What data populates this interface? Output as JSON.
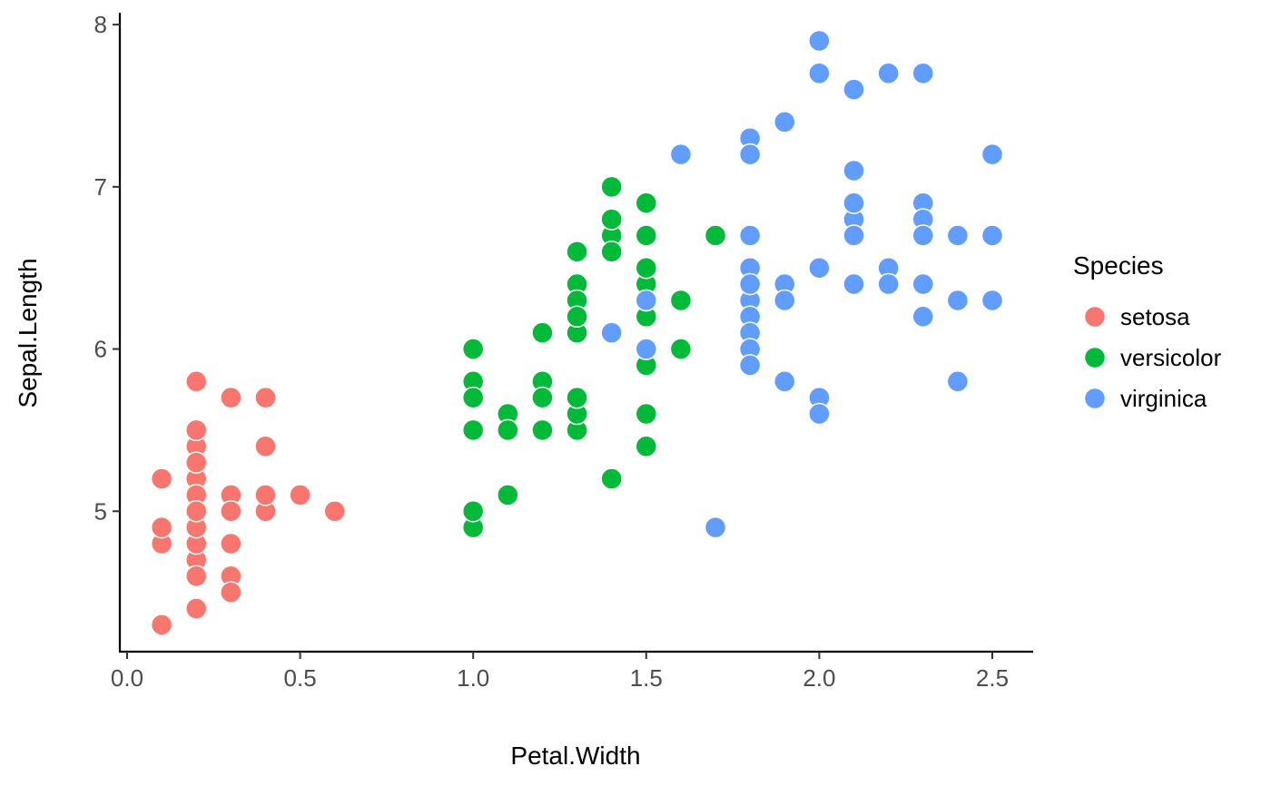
{
  "chart_data": {
    "type": "scatter",
    "xlabel": "Petal.Width",
    "ylabel": "Sepal.Length",
    "xlim": [
      0,
      2.5
    ],
    "ylim": [
      4.3,
      7.9
    ],
    "xticks": [
      "0.0",
      "0.5",
      "1.0",
      "1.5",
      "2.0",
      "2.5"
    ],
    "yticks": [
      "5",
      "6",
      "7",
      "8"
    ],
    "grid": false,
    "legend": {
      "title": "Species",
      "position": "right"
    },
    "series": [
      {
        "name": "setosa",
        "color": "#F8766D",
        "points": [
          [
            0.2,
            5.1
          ],
          [
            0.2,
            4.9
          ],
          [
            0.2,
            4.7
          ],
          [
            0.2,
            4.6
          ],
          [
            0.2,
            5.0
          ],
          [
            0.4,
            5.4
          ],
          [
            0.3,
            4.6
          ],
          [
            0.2,
            5.0
          ],
          [
            0.2,
            4.4
          ],
          [
            0.1,
            4.9
          ],
          [
            0.2,
            5.4
          ],
          [
            0.2,
            4.8
          ],
          [
            0.1,
            4.8
          ],
          [
            0.1,
            4.3
          ],
          [
            0.2,
            5.8
          ],
          [
            0.4,
            5.7
          ],
          [
            0.4,
            5.4
          ],
          [
            0.3,
            5.1
          ],
          [
            0.3,
            5.7
          ],
          [
            0.3,
            5.1
          ],
          [
            0.2,
            5.4
          ],
          [
            0.4,
            5.1
          ],
          [
            0.2,
            4.6
          ],
          [
            0.5,
            5.1
          ],
          [
            0.2,
            4.8
          ],
          [
            0.2,
            5.0
          ],
          [
            0.4,
            5.0
          ],
          [
            0.2,
            5.2
          ],
          [
            0.2,
            5.2
          ],
          [
            0.2,
            4.7
          ],
          [
            0.2,
            4.8
          ],
          [
            0.4,
            5.4
          ],
          [
            0.1,
            5.2
          ],
          [
            0.2,
            5.5
          ],
          [
            0.2,
            4.9
          ],
          [
            0.2,
            5.0
          ],
          [
            0.2,
            5.5
          ],
          [
            0.1,
            4.9
          ],
          [
            0.2,
            4.4
          ],
          [
            0.2,
            5.1
          ],
          [
            0.3,
            5.0
          ],
          [
            0.3,
            4.5
          ],
          [
            0.2,
            4.4
          ],
          [
            0.6,
            5.0
          ],
          [
            0.4,
            5.1
          ],
          [
            0.3,
            4.8
          ],
          [
            0.2,
            5.1
          ],
          [
            0.2,
            4.6
          ],
          [
            0.2,
            5.3
          ],
          [
            0.2,
            5.0
          ]
        ]
      },
      {
        "name": "versicolor",
        "color": "#00BA38",
        "points": [
          [
            1.4,
            7.0
          ],
          [
            1.5,
            6.4
          ],
          [
            1.5,
            6.9
          ],
          [
            1.3,
            5.5
          ],
          [
            1.5,
            6.5
          ],
          [
            1.3,
            5.7
          ],
          [
            1.6,
            6.3
          ],
          [
            1.0,
            4.9
          ],
          [
            1.3,
            6.6
          ],
          [
            1.4,
            5.2
          ],
          [
            1.0,
            5.0
          ],
          [
            1.5,
            5.9
          ],
          [
            1.0,
            6.0
          ],
          [
            1.4,
            6.1
          ],
          [
            1.3,
            5.6
          ],
          [
            1.4,
            6.7
          ],
          [
            1.5,
            5.6
          ],
          [
            1.0,
            5.8
          ],
          [
            1.5,
            6.2
          ],
          [
            1.1,
            5.6
          ],
          [
            1.8,
            5.9
          ],
          [
            1.3,
            6.1
          ],
          [
            1.5,
            6.3
          ],
          [
            1.2,
            6.1
          ],
          [
            1.3,
            6.4
          ],
          [
            1.4,
            6.6
          ],
          [
            1.4,
            6.8
          ],
          [
            1.7,
            6.7
          ],
          [
            1.5,
            6.0
          ],
          [
            1.0,
            5.7
          ],
          [
            1.1,
            5.5
          ],
          [
            1.0,
            5.5
          ],
          [
            1.2,
            5.8
          ],
          [
            1.6,
            6.0
          ],
          [
            1.5,
            5.4
          ],
          [
            1.6,
            6.0
          ],
          [
            1.5,
            6.7
          ],
          [
            1.3,
            6.3
          ],
          [
            1.3,
            5.6
          ],
          [
            1.3,
            5.5
          ],
          [
            1.2,
            5.5
          ],
          [
            1.4,
            6.1
          ],
          [
            1.2,
            5.8
          ],
          [
            1.0,
            5.0
          ],
          [
            1.3,
            5.6
          ],
          [
            1.2,
            5.7
          ],
          [
            1.3,
            5.7
          ],
          [
            1.3,
            6.2
          ],
          [
            1.1,
            5.1
          ],
          [
            1.3,
            5.7
          ]
        ]
      },
      {
        "name": "virginica",
        "color": "#619CFF",
        "points": [
          [
            2.5,
            6.3
          ],
          [
            1.9,
            5.8
          ],
          [
            2.1,
            7.1
          ],
          [
            1.8,
            6.3
          ],
          [
            2.2,
            6.5
          ],
          [
            2.1,
            7.6
          ],
          [
            1.7,
            4.9
          ],
          [
            1.8,
            7.3
          ],
          [
            1.8,
            6.7
          ],
          [
            2.5,
            7.2
          ],
          [
            2.0,
            6.5
          ],
          [
            1.9,
            6.4
          ],
          [
            2.1,
            6.8
          ],
          [
            2.0,
            5.7
          ],
          [
            2.4,
            5.8
          ],
          [
            2.3,
            6.4
          ],
          [
            1.8,
            6.5
          ],
          [
            2.2,
            7.7
          ],
          [
            2.3,
            7.7
          ],
          [
            1.5,
            6.0
          ],
          [
            2.3,
            6.9
          ],
          [
            2.0,
            5.6
          ],
          [
            2.0,
            7.7
          ],
          [
            1.8,
            6.3
          ],
          [
            2.1,
            6.7
          ],
          [
            1.8,
            7.2
          ],
          [
            1.8,
            6.2
          ],
          [
            1.8,
            6.1
          ],
          [
            2.1,
            6.4
          ],
          [
            1.6,
            7.2
          ],
          [
            1.9,
            7.4
          ],
          [
            2.0,
            7.9
          ],
          [
            2.2,
            6.4
          ],
          [
            1.5,
            6.3
          ],
          [
            1.4,
            6.1
          ],
          [
            2.3,
            7.7
          ],
          [
            2.4,
            6.3
          ],
          [
            1.8,
            6.4
          ],
          [
            1.8,
            6.0
          ],
          [
            2.1,
            6.9
          ],
          [
            2.4,
            6.7
          ],
          [
            2.3,
            6.9
          ],
          [
            1.9,
            5.8
          ],
          [
            2.3,
            6.8
          ],
          [
            2.5,
            6.7
          ],
          [
            2.3,
            6.7
          ],
          [
            1.9,
            6.3
          ],
          [
            2.0,
            6.5
          ],
          [
            2.3,
            6.2
          ],
          [
            1.8,
            5.9
          ]
        ]
      }
    ]
  }
}
